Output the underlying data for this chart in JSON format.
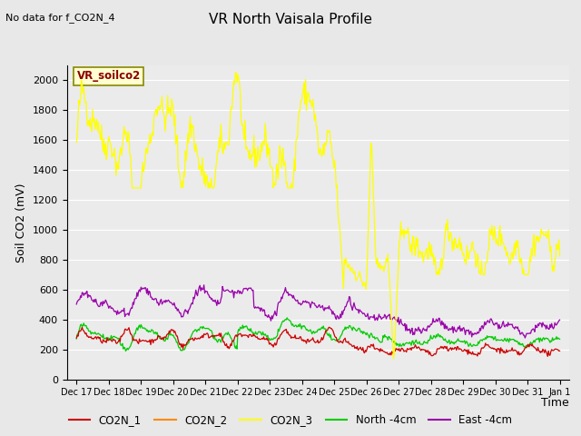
{
  "title": "VR North Vaisala Profile",
  "subtitle": "No data for f_CO2N_4",
  "ylabel": "Soil CO2 (mV)",
  "xlabel": "Time",
  "annotation": "VR_soilco2",
  "ylim": [
    0,
    2100
  ],
  "yticks": [
    0,
    200,
    400,
    600,
    800,
    1000,
    1200,
    1400,
    1600,
    1800,
    2000
  ],
  "bg_color": "#e8e8e8",
  "plot_bg": "#ebebeb",
  "series_colors": {
    "CO2N_1": "#cc0000",
    "CO2N_2": "#ff8800",
    "CO2N_3": "#ffff00",
    "North_4cm": "#00cc00",
    "East_4cm": "#9900aa"
  },
  "x_tick_labels": [
    "Dec 17",
    "Dec 18",
    "Dec 19",
    "Dec 20",
    "Dec 21",
    "Dec 22",
    "Dec 23",
    "Dec 24",
    "Dec 25",
    "Dec 26",
    "Dec 27",
    "Dec 28",
    "Dec 29",
    "Dec 30",
    "Dec 31",
    "Jan 1"
  ],
  "legend_labels": [
    "CO2N_1",
    "CO2N_2",
    "CO2N_3",
    "North -4cm",
    "East -4cm"
  ]
}
